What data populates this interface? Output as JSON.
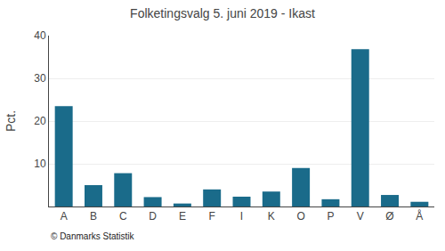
{
  "chart_data": {
    "type": "bar",
    "title": "Folketingsvalg 5. juni 2019 - Ikast",
    "categories": [
      "A",
      "B",
      "C",
      "D",
      "E",
      "F",
      "I",
      "K",
      "O",
      "P",
      "V",
      "Ø",
      "Å"
    ],
    "values": [
      23.5,
      5.0,
      7.8,
      2.2,
      0.7,
      4.0,
      2.3,
      3.5,
      9.0,
      1.7,
      36.8,
      2.7,
      1.1
    ],
    "color": "#1a6b8a",
    "ylabel": "Pct.",
    "ylim": [
      0,
      40
    ],
    "yticks": [
      10,
      20,
      30,
      40
    ],
    "grid": true,
    "footer": "© Danmarks Statistik"
  }
}
